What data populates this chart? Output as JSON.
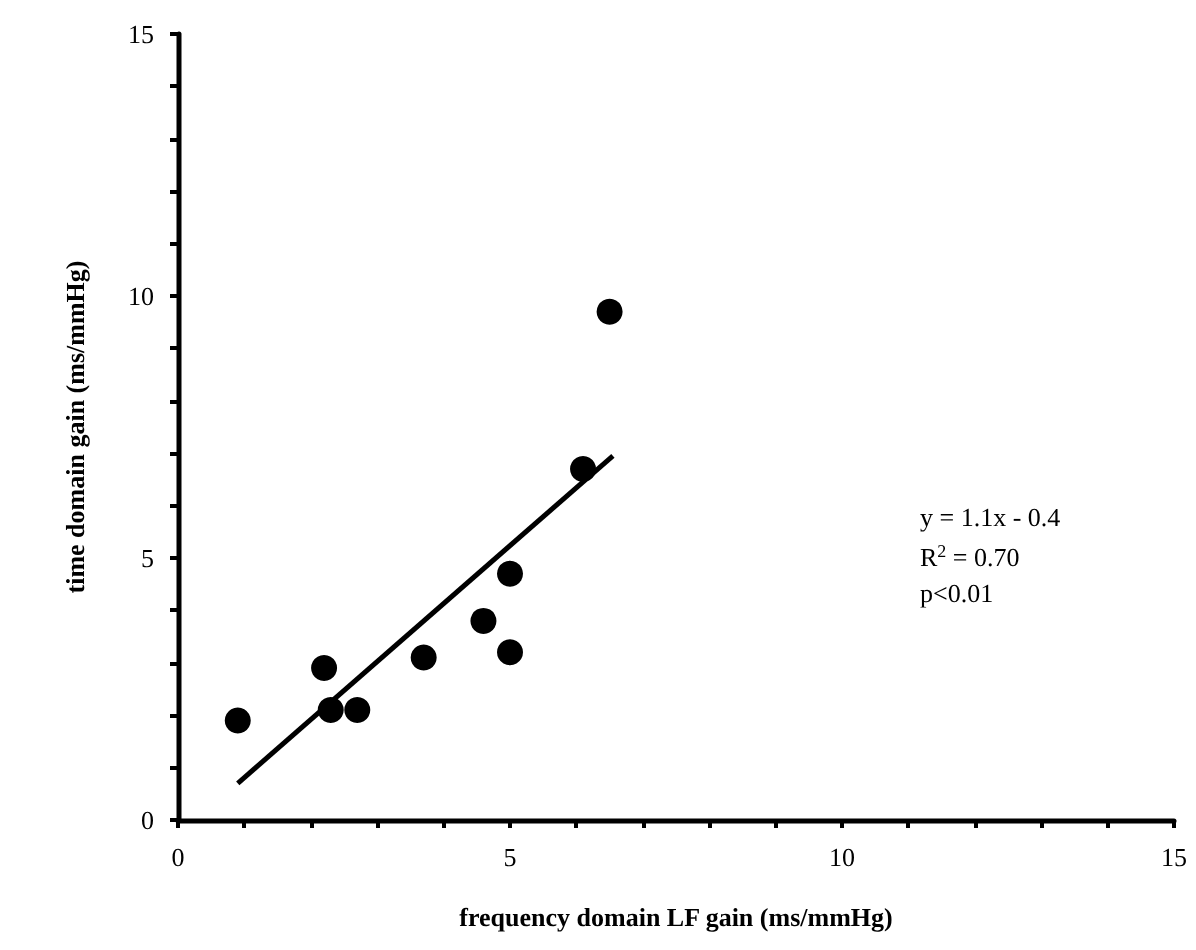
{
  "chart_data": {
    "type": "scatter",
    "xlabel": "frequency domain LF gain (ms/mmHg)",
    "ylabel": "time domain gain (ms/mmHg)",
    "xlim": [
      0,
      15
    ],
    "ylim": [
      0,
      15
    ],
    "xticks": [
      0,
      {
        "value": 1,
        "label": null
      },
      {
        "value": 2,
        "label": null
      },
      {
        "value": 3,
        "label": null
      },
      {
        "value": 4,
        "label": null
      },
      5,
      {
        "value": 6,
        "label": null
      },
      {
        "value": 7,
        "label": null
      },
      {
        "value": 8,
        "label": null
      },
      {
        "value": 9,
        "label": null
      },
      10,
      {
        "value": 11,
        "label": null
      },
      {
        "value": 12,
        "label": null
      },
      {
        "value": 13,
        "label": null
      },
      {
        "value": 14,
        "label": null
      },
      15
    ],
    "yticks": [
      0,
      {
        "value": 1,
        "label": null
      },
      {
        "value": 2,
        "label": null
      },
      {
        "value": 3,
        "label": null
      },
      {
        "value": 4,
        "label": null
      },
      5,
      {
        "value": 6,
        "label": null
      },
      {
        "value": 7,
        "label": null
      },
      {
        "value": 8,
        "label": null
      },
      {
        "value": 9,
        "label": null
      },
      10,
      {
        "value": 11,
        "label": null
      },
      {
        "value": 12,
        "label": null
      },
      {
        "value": 13,
        "label": null
      },
      {
        "value": 14,
        "label": null
      },
      15
    ],
    "grid": false,
    "marker": "circle",
    "series": [
      {
        "color": "#000000",
        "x": [
          0.9,
          2.2,
          2.3,
          2.7,
          3.7,
          4.6,
          5.0,
          5.0,
          6.1,
          6.5
        ],
        "values": [
          1.9,
          2.9,
          2.1,
          2.1,
          3.1,
          3.8,
          4.7,
          3.2,
          6.7,
          9.7
        ]
      },
      {
        "type": "line",
        "color": "#000000",
        "marker": "none",
        "line_style": "solid",
        "x": [
          0.9,
          6.55
        ],
        "values": [
          0.7,
          6.95
        ]
      }
    ],
    "annotations": [
      "y = 1.1x - 0.4",
      "R$^{2}$ = 0.70",
      "p<0.01"
    ]
  }
}
